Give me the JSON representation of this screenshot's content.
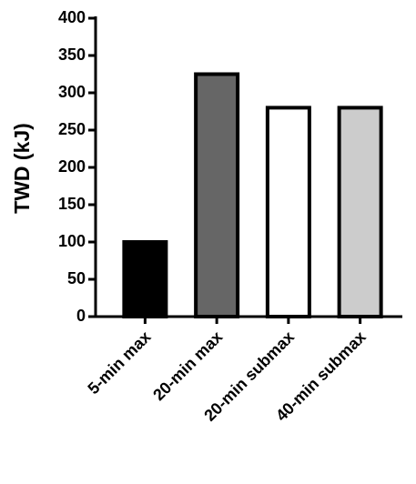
{
  "chart_data": {
    "type": "bar",
    "y_label": "TWD (kJ)",
    "categories": [
      "5-min max",
      "20-min max",
      "20-min submax",
      "40-min submax"
    ],
    "values": [
      100,
      325,
      280,
      280
    ],
    "colors": [
      "#000000",
      "#666666",
      "#ffffff",
      "#cccccc"
    ],
    "ylim": [
      0,
      400
    ],
    "yticks": [
      0,
      50,
      100,
      150,
      200,
      250,
      300,
      350,
      400
    ],
    "grid": false
  }
}
